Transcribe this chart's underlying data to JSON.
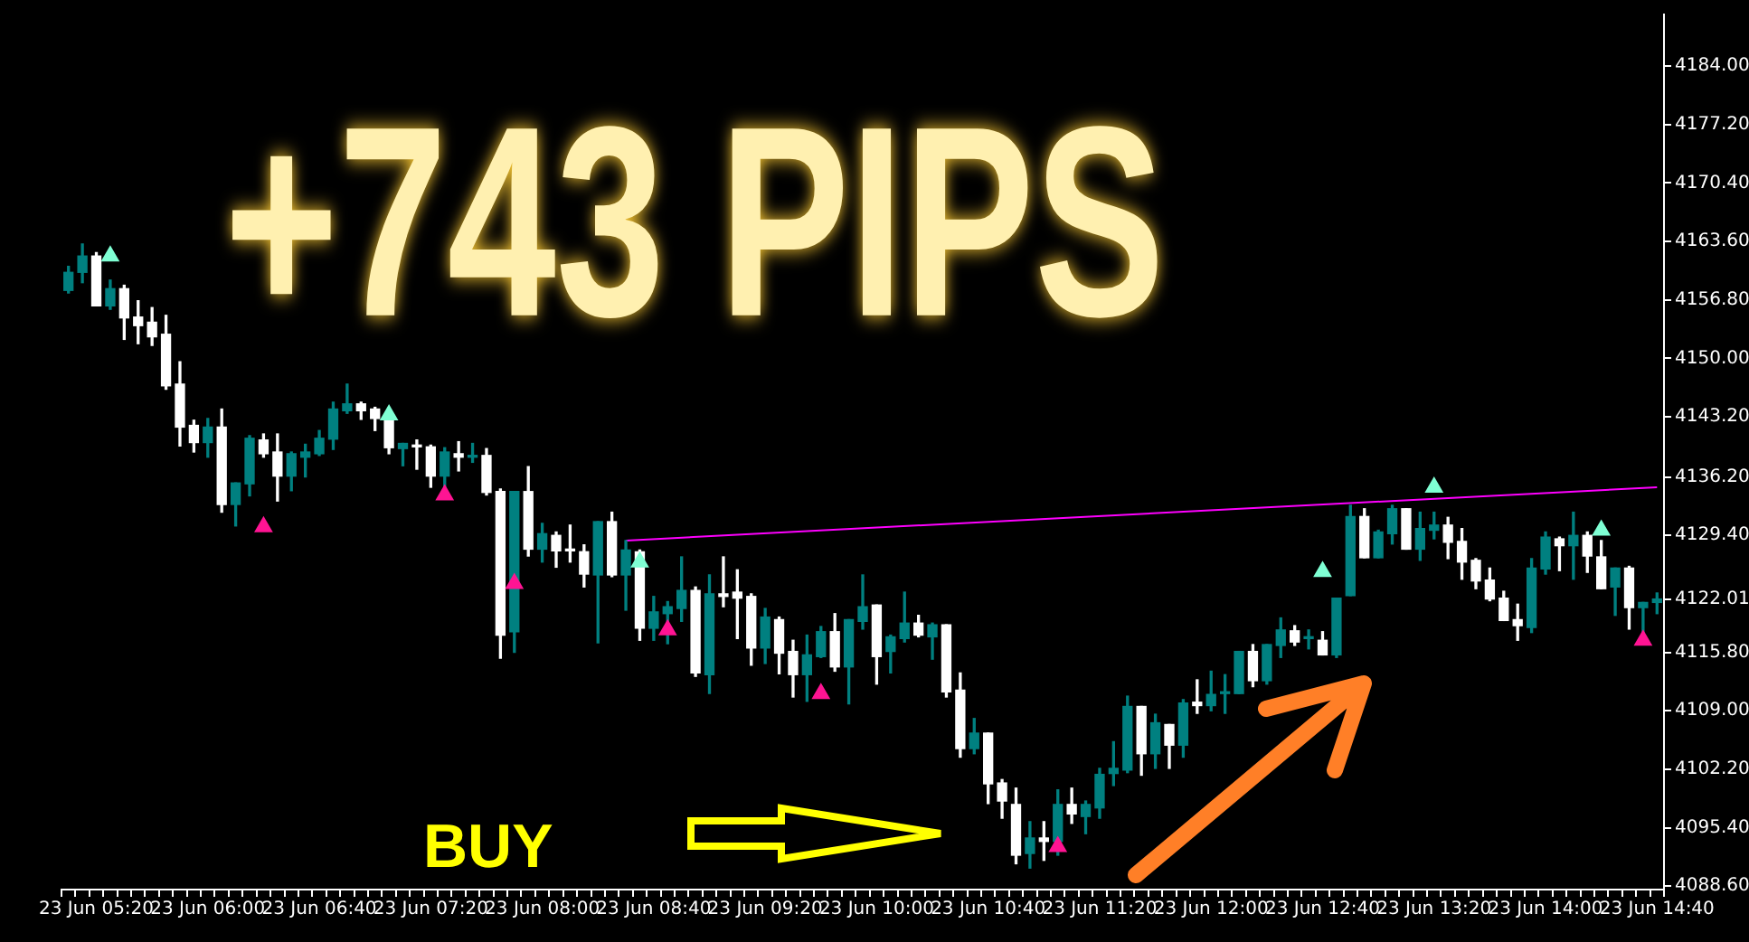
{
  "chart_data": {
    "type": "candlestick",
    "annotations": [
      "+743 PIPS",
      "BUY"
    ],
    "categories": [
      null,
      null,
      "23 Jun 05:20",
      null,
      null,
      null,
      null,
      null,
      null,
      null,
      "23 Jun 06:00",
      null,
      null,
      null,
      null,
      null,
      null,
      null,
      "23 Jun 06:40",
      null,
      null,
      null,
      null,
      null,
      null,
      null,
      "23 Jun 07:20",
      null,
      null,
      null,
      null,
      null,
      null,
      null,
      "23 Jun 08:00",
      null,
      null,
      null,
      null,
      null,
      null,
      null,
      "23 Jun 08:40",
      null,
      null,
      null,
      null,
      null,
      null,
      null,
      "23 Jun 09:20",
      null,
      null,
      null,
      null,
      null,
      null,
      null,
      "23 Jun 10:00",
      null,
      null,
      null,
      null,
      null,
      null,
      null,
      "23 Jun 10:40",
      null,
      null,
      null,
      null,
      null,
      null,
      null,
      "23 Jun 11:20",
      null,
      null,
      null,
      null,
      null,
      null,
      null,
      "23 Jun 12:00",
      null,
      null,
      null,
      null,
      null,
      null,
      null,
      "23 Jun 12:40",
      null,
      null,
      null,
      null,
      null,
      null,
      null,
      "23 Jun 13:20",
      null,
      null,
      null,
      null,
      null,
      null,
      null,
      "23 Jun 14:00",
      null,
      null,
      null,
      null,
      null,
      null,
      null,
      "23 Jun 14:40"
    ],
    "ohlc": [
      [
        4157.9,
        4160.7,
        4157.6,
        4160.0
      ],
      [
        4160.0,
        4163.3,
        4158.8,
        4161.9
      ],
      [
        4161.9,
        4162.3,
        4156.1,
        4156.1
      ],
      [
        4156.1,
        4159.1,
        4155.7,
        4158.1
      ],
      [
        4158.1,
        4158.5,
        4152.2,
        4154.7
      ],
      [
        4154.8,
        4156.7,
        4151.7,
        4153.8
      ],
      [
        4154.2,
        4155.9,
        4151.5,
        4152.5
      ],
      [
        4152.8,
        4155.0,
        4146.4,
        4146.8
      ],
      [
        4147.0,
        4149.6,
        4139.8,
        4142.0
      ],
      [
        4142.2,
        4142.8,
        4139.1,
        4140.2
      ],
      [
        4140.2,
        4143.0,
        4138.5,
        4142.0
      ],
      [
        4142.0,
        4144.1,
        4132.1,
        4133.0
      ],
      [
        4133.0,
        4135.5,
        4130.5,
        4135.5
      ],
      [
        4135.4,
        4141.0,
        4134.0,
        4140.7
      ],
      [
        4140.5,
        4141.2,
        4138.5,
        4138.9
      ],
      [
        4139.1,
        4141.2,
        4133.4,
        4136.3
      ],
      [
        4136.3,
        4139.1,
        4134.6,
        4138.9
      ],
      [
        4138.5,
        4140.0,
        4136.2,
        4139.1
      ],
      [
        4138.9,
        4141.6,
        4138.7,
        4140.7
      ],
      [
        4140.6,
        4144.9,
        4139.4,
        4144.1
      ],
      [
        4143.9,
        4147.0,
        4143.6,
        4144.7
      ],
      [
        4144.7,
        4144.9,
        4142.9,
        4143.9
      ],
      [
        4144.1,
        4144.3,
        4141.6,
        4143.0
      ],
      [
        4143.2,
        4143.2,
        4138.9,
        4139.6
      ],
      [
        4139.5,
        4140.1,
        4137.5,
        4140.1
      ],
      [
        4139.8,
        4140.5,
        4137.1,
        4139.7
      ],
      [
        4139.7,
        4139.9,
        4135.0,
        4136.3
      ],
      [
        4136.3,
        4139.6,
        4135.0,
        4139.1
      ],
      [
        4138.9,
        4140.3,
        4136.9,
        4138.5
      ],
      [
        4138.5,
        4140.1,
        4137.9,
        4138.7
      ],
      [
        4138.7,
        4139.5,
        4134.1,
        4134.4
      ],
      [
        4134.5,
        4134.8,
        4115.1,
        4117.8
      ],
      [
        4118.2,
        4134.5,
        4115.8,
        4134.5
      ],
      [
        4134.5,
        4137.4,
        4127.0,
        4127.8
      ],
      [
        4127.8,
        4130.8,
        4126.3,
        4129.6
      ],
      [
        4129.4,
        4129.8,
        4125.7,
        4127.6
      ],
      [
        4127.7,
        4130.6,
        4126.3,
        4127.6
      ],
      [
        4127.5,
        4128.3,
        4123.4,
        4124.9
      ],
      [
        4124.8,
        4131.0,
        4116.9,
        4131.0
      ],
      [
        4131.0,
        4132.1,
        4124.6,
        4124.8
      ],
      [
        4124.8,
        4128.8,
        4120.7,
        4127.7
      ],
      [
        4127.5,
        4127.7,
        4117.2,
        4118.6
      ],
      [
        4118.6,
        4122.3,
        4117.2,
        4120.5
      ],
      [
        4120.3,
        4121.7,
        4116.8,
        4121.1
      ],
      [
        4120.9,
        4126.9,
        4119.4,
        4123.0
      ],
      [
        4123.0,
        4123.4,
        4113.0,
        4113.4
      ],
      [
        4113.2,
        4124.8,
        4111.0,
        4122.6
      ],
      [
        4122.6,
        4126.9,
        4121.1,
        4122.3
      ],
      [
        4122.8,
        4125.4,
        4117.4,
        4122.1
      ],
      [
        4122.3,
        4122.6,
        4114.3,
        4116.3
      ],
      [
        4116.3,
        4120.9,
        4114.5,
        4119.9
      ],
      [
        4119.6,
        4119.9,
        4113.3,
        4115.7
      ],
      [
        4115.9,
        4117.2,
        4110.6,
        4113.2
      ],
      [
        4113.2,
        4117.8,
        4110.1,
        4115.5
      ],
      [
        4115.3,
        4118.8,
        4115.2,
        4118.2
      ],
      [
        4118.2,
        4120.3,
        4113.6,
        4114.1
      ],
      [
        4114.1,
        4119.6,
        4109.8,
        4119.6
      ],
      [
        4119.4,
        4124.8,
        4118.5,
        4121.1
      ],
      [
        4121.3,
        4121.3,
        4112.1,
        4115.3
      ],
      [
        4115.9,
        4117.8,
        4113.4,
        4117.6
      ],
      [
        4117.4,
        4122.8,
        4117.0,
        4119.2
      ],
      [
        4119.2,
        4120.1,
        4117.6,
        4117.8
      ],
      [
        4117.6,
        4119.2,
        4115.0,
        4119.0
      ],
      [
        4119.0,
        4119.0,
        4110.6,
        4111.2
      ],
      [
        4111.4,
        4113.4,
        4103.6,
        4104.6
      ],
      [
        4104.6,
        4108.1,
        4104.0,
        4106.4
      ],
      [
        4106.4,
        4106.4,
        4098.2,
        4100.5
      ],
      [
        4100.6,
        4101.0,
        4096.5,
        4098.5
      ],
      [
        4098.1,
        4100.0,
        4091.2,
        4092.2
      ],
      [
        4092.4,
        4096.1,
        4090.7,
        4094.2
      ],
      [
        4094.2,
        4096.1,
        4091.6,
        4093.8
      ],
      [
        4093.8,
        4099.8,
        4092.2,
        4098.1
      ],
      [
        4098.1,
        4100.0,
        4095.9,
        4097.0
      ],
      [
        4096.7,
        4098.5,
        4094.7,
        4098.1
      ],
      [
        4097.7,
        4102.3,
        4096.5,
        4101.6
      ],
      [
        4101.7,
        4105.4,
        4100.3,
        4102.3
      ],
      [
        4102.1,
        4110.7,
        4101.8,
        4109.5
      ],
      [
        4109.5,
        4109.5,
        4101.5,
        4104.0
      ],
      [
        4104.0,
        4108.6,
        4102.3,
        4107.6
      ],
      [
        4107.4,
        4107.4,
        4102.3,
        4105.0
      ],
      [
        4105.0,
        4110.3,
        4103.6,
        4109.9
      ],
      [
        4110.0,
        4112.6,
        4108.7,
        4109.6
      ],
      [
        4109.6,
        4113.6,
        4109.0,
        4110.9
      ],
      [
        4111.0,
        4113.2,
        4108.7,
        4111.2
      ],
      [
        4111.0,
        4115.9,
        4111.0,
        4115.9
      ],
      [
        4115.9,
        4116.7,
        4111.8,
        4112.5
      ],
      [
        4112.5,
        4116.7,
        4112.1,
        4116.7
      ],
      [
        4116.6,
        4119.8,
        4115.2,
        4118.4
      ],
      [
        4118.3,
        4118.9,
        4116.6,
        4117.0
      ],
      [
        4117.4,
        4118.4,
        4116.2,
        4117.6
      ],
      [
        4117.2,
        4118.2,
        4115.5,
        4115.5
      ],
      [
        4115.5,
        4122.1,
        4115.2,
        4122.1
      ],
      [
        4122.4,
        4132.9,
        4122.4,
        4131.6
      ],
      [
        4131.6,
        4132.5,
        4126.8,
        4126.8
      ],
      [
        4126.8,
        4130.0,
        4126.8,
        4129.8
      ],
      [
        4129.6,
        4132.9,
        4128.4,
        4132.5
      ],
      [
        4132.5,
        4132.5,
        4127.8,
        4127.8
      ],
      [
        4127.8,
        4132.1,
        4126.5,
        4130.2
      ],
      [
        4130.0,
        4132.1,
        4129.0,
        4130.6
      ],
      [
        4130.6,
        4131.5,
        4126.7,
        4128.6
      ],
      [
        4128.7,
        4130.2,
        4124.3,
        4126.3
      ],
      [
        4126.5,
        4126.7,
        4123.2,
        4124.1
      ],
      [
        4124.2,
        4125.6,
        4121.8,
        4122.0
      ],
      [
        4122.1,
        4122.9,
        4119.5,
        4119.5
      ],
      [
        4119.6,
        4121.4,
        4117.2,
        4118.9
      ],
      [
        4118.7,
        4126.7,
        4118.1,
        4125.6
      ],
      [
        4125.5,
        4129.8,
        4124.9,
        4129.2
      ],
      [
        4129.0,
        4129.2,
        4125.3,
        4128.2
      ],
      [
        4128.2,
        4132.1,
        4124.3,
        4129.4
      ],
      [
        4129.4,
        4129.8,
        4125.1,
        4127.0
      ],
      [
        4126.9,
        4128.8,
        4123.2,
        4123.2
      ],
      [
        4123.4,
        4125.6,
        4120.1,
        4125.6
      ],
      [
        4125.6,
        4125.8,
        4118.5,
        4121.0
      ],
      [
        4121.0,
        4121.6,
        4118.1,
        4121.6
      ],
      [
        4121.6,
        4122.7,
        4120.3,
        4122.0
      ]
    ],
    "colors": [
      "#008080",
      "#008080",
      "#ffffff",
      "#008080",
      "#ffffff",
      "#ffffff",
      "#ffffff",
      "#ffffff",
      "#ffffff",
      "#ffffff",
      "#008080",
      "#ffffff",
      "#008080",
      "#008080",
      "#ffffff",
      "#ffffff",
      "#008080",
      "#008080",
      "#008080",
      "#008080",
      "#008080",
      "#ffffff",
      "#ffffff",
      "#ffffff",
      "#008080",
      "#ffffff",
      "#ffffff",
      "#008080",
      "#ffffff",
      "#008080",
      "#ffffff",
      "#ffffff",
      "#008080",
      "#ffffff",
      "#008080",
      "#ffffff",
      "#ffffff",
      "#ffffff",
      "#008080",
      "#ffffff",
      "#008080",
      "#ffffff",
      "#008080",
      "#008080",
      "#008080",
      "#ffffff",
      "#008080",
      "#ffffff",
      "#ffffff",
      "#ffffff",
      "#008080",
      "#ffffff",
      "#ffffff",
      "#008080",
      "#008080",
      "#ffffff",
      "#008080",
      "#008080",
      "#ffffff",
      "#008080",
      "#008080",
      "#ffffff",
      "#008080",
      "#ffffff",
      "#ffffff",
      "#008080",
      "#ffffff",
      "#ffffff",
      "#ffffff",
      "#008080",
      "#ffffff",
      "#008080",
      "#ffffff",
      "#008080",
      "#008080",
      "#008080",
      "#008080",
      "#ffffff",
      "#008080",
      "#ffffff",
      "#008080",
      "#ffffff",
      "#008080",
      "#008080",
      "#008080",
      "#ffffff",
      "#008080",
      "#008080",
      "#ffffff",
      "#008080",
      "#ffffff",
      "#008080",
      "#008080",
      "#ffffff",
      "#008080",
      "#008080",
      "#ffffff",
      "#008080",
      "#008080",
      "#ffffff",
      "#ffffff",
      "#ffffff",
      "#ffffff",
      "#ffffff",
      "#ffffff",
      "#008080",
      "#008080",
      "#ffffff",
      "#008080",
      "#ffffff",
      "#ffffff",
      "#008080",
      "#ffffff",
      "#008080",
      "#008080"
    ],
    "series": [
      {
        "type": "line",
        "color": "#ff00ff",
        "values": [
          null,
          null,
          null,
          null,
          null,
          null,
          null,
          null,
          null,
          null,
          null,
          null,
          null,
          null,
          null,
          null,
          null,
          null,
          null,
          null,
          null,
          null,
          null,
          null,
          null,
          null,
          null,
          null,
          null,
          null,
          null,
          null,
          null,
          null,
          null,
          null,
          null,
          null,
          null,
          null,
          4128.8,
          null,
          null,
          null,
          null,
          null,
          null,
          null,
          null,
          null,
          null,
          null,
          null,
          null,
          null,
          null,
          null,
          null,
          null,
          null,
          null,
          null,
          null,
          null,
          null,
          null,
          null,
          null,
          null,
          null,
          null,
          null,
          null,
          null,
          null,
          null,
          null,
          null,
          null,
          null,
          null,
          null,
          null,
          null,
          null,
          null,
          null,
          null,
          null,
          null,
          null,
          null,
          null,
          null,
          null,
          null,
          null,
          null,
          null,
          null,
          null,
          null,
          null,
          null,
          null,
          null,
          null,
          null,
          null,
          null,
          null,
          null,
          null,
          null,
          4135.0
        ]
      },
      {
        "type": "scatter",
        "color": "#7fffd4",
        "marker": "triangle",
        "values": [
          null,
          null,
          null,
          4161.9,
          null,
          null,
          null,
          null,
          null,
          null,
          null,
          null,
          null,
          null,
          null,
          null,
          null,
          null,
          null,
          null,
          null,
          null,
          null,
          4143.4,
          null,
          null,
          null,
          null,
          null,
          null,
          null,
          null,
          null,
          null,
          null,
          null,
          null,
          null,
          null,
          null,
          null,
          4126.3,
          null,
          null,
          null,
          null,
          null,
          null,
          null,
          null,
          null,
          null,
          null,
          null,
          null,
          null,
          null,
          null,
          null,
          null,
          null,
          null,
          null,
          null,
          null,
          null,
          null,
          null,
          null,
          null,
          null,
          null,
          null,
          null,
          null,
          null,
          null,
          null,
          null,
          null,
          null,
          null,
          null,
          null,
          null,
          null,
          null,
          null,
          null,
          null,
          4125.2,
          null,
          null,
          null,
          null,
          null,
          null,
          null,
          4135.0,
          null,
          null,
          null,
          null,
          null,
          null,
          null,
          null,
          null,
          null,
          null,
          4130.0,
          null,
          null,
          null,
          null
        ]
      },
      {
        "type": "scatter",
        "color": "#ff1493",
        "marker": "triangle",
        "values": [
          null,
          null,
          null,
          null,
          null,
          null,
          null,
          null,
          null,
          null,
          null,
          null,
          null,
          null,
          4130.4,
          null,
          null,
          null,
          null,
          null,
          null,
          null,
          null,
          null,
          null,
          null,
          null,
          4134.1,
          null,
          null,
          null,
          null,
          4123.8,
          null,
          null,
          null,
          null,
          null,
          null,
          null,
          null,
          null,
          null,
          4118.4,
          null,
          null,
          null,
          null,
          null,
          null,
          null,
          null,
          null,
          null,
          4111.0,
          null,
          null,
          null,
          null,
          null,
          null,
          null,
          null,
          null,
          null,
          null,
          null,
          null,
          null,
          null,
          null,
          4093.2,
          null,
          null,
          null,
          null,
          null,
          null,
          null,
          null,
          null,
          null,
          null,
          null,
          null,
          null,
          null,
          null,
          null,
          null,
          null,
          null,
          null,
          null,
          null,
          null,
          null,
          null,
          null,
          null,
          null,
          null,
          null,
          null,
          null,
          null,
          null,
          null,
          null,
          null,
          null,
          null,
          null,
          4117.2,
          null
        ]
      }
    ],
    "ylim": [
      4088.2,
      4190
    ],
    "yticks": [
      {
        "value": 4184,
        "label": "4184.00"
      },
      {
        "value": 4177.2,
        "label": "4177.20"
      },
      {
        "value": 4170.4,
        "label": "4170.40"
      },
      {
        "value": 4163.6,
        "label": "4163.60"
      },
      {
        "value": 4156.8,
        "label": "4156.80"
      },
      {
        "value": 4150,
        "label": "4150.00"
      },
      {
        "value": 4143.2,
        "label": "4143.20"
      },
      {
        "value": 4136.2,
        "label": "4136.20"
      },
      {
        "value": 4129.4,
        "label": "4129.40"
      },
      {
        "value": 4122.01,
        "label": "4122.01"
      },
      {
        "value": 4115.8,
        "label": "4115.80"
      },
      {
        "value": 4109,
        "label": "4109.00"
      },
      {
        "value": 4102.2,
        "label": "4102.20"
      },
      {
        "value": 4095.4,
        "label": "4095.40"
      },
      {
        "value": 4088.6,
        "label": "4088.60"
      }
    ]
  }
}
